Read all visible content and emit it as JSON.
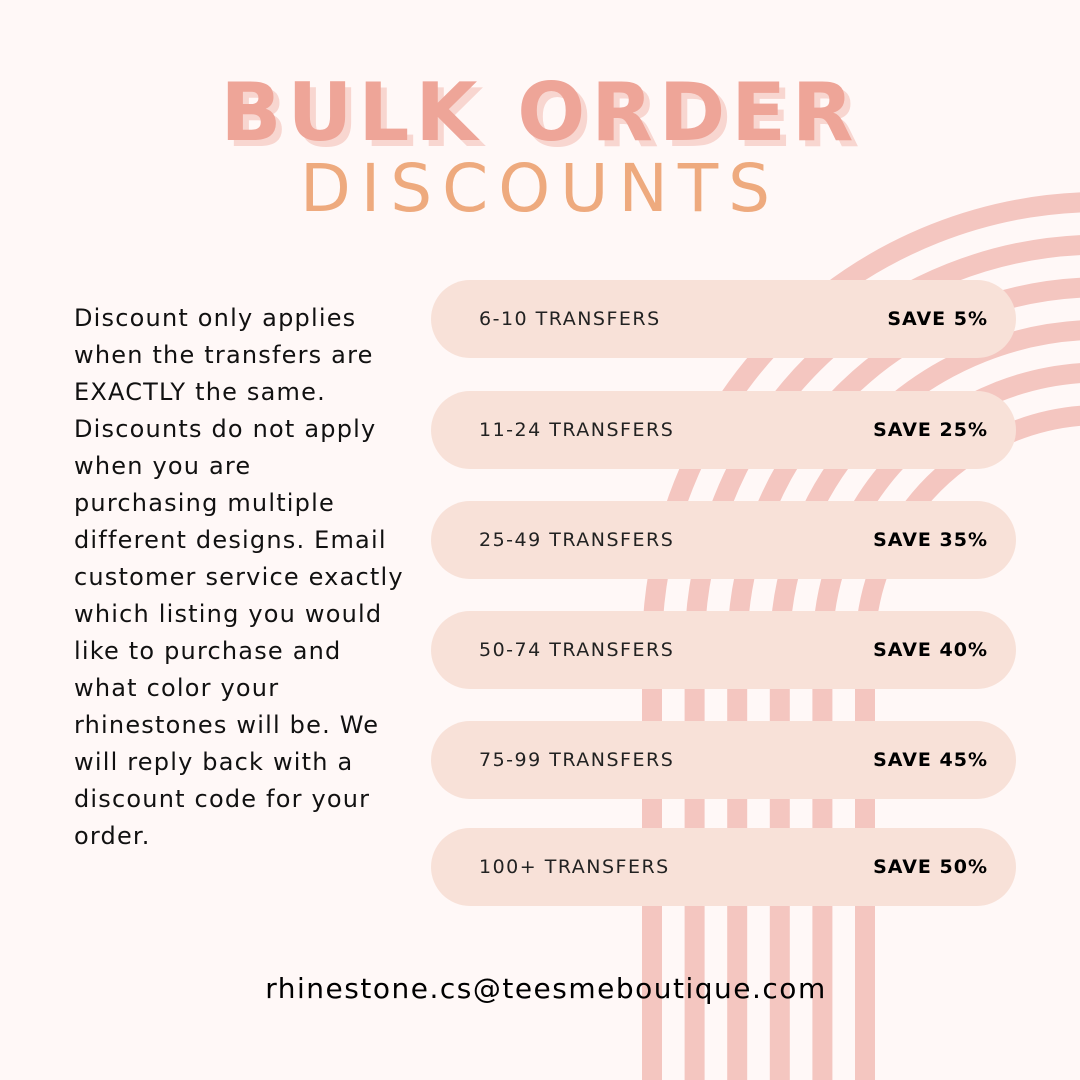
{
  "title": {
    "line1": "BULK ORDER",
    "line2": "DISCOUNTS"
  },
  "description": "Discount only applies when the transfers are EXACTLY the same. Discounts do not apply when you are purchasing multiple different designs. Email customer service exactly which listing you would like to purchase and what color your rhinestones will be. We will reply back with a discount code for your order.",
  "tiers": [
    {
      "quantity": "6-10 TRANSFERS",
      "saving": "SAVE 5%"
    },
    {
      "quantity": "11-24 TRANSFERS",
      "saving": "SAVE 25%"
    },
    {
      "quantity": "25-49 TRANSFERS",
      "saving": "SAVE 35%"
    },
    {
      "quantity": "50-74 TRANSFERS",
      "saving": "SAVE 40%"
    },
    {
      "quantity": "75-99 TRANSFERS",
      "saving": "SAVE 45%"
    },
    {
      "quantity": "100+ TRANSFERS",
      "saving": "SAVE 50%"
    }
  ],
  "email": "rhinestone.cs@teesmeboutique.com",
  "colors": {
    "background": "#fff8f7",
    "title": "#eea598",
    "subtitle": "#eeaa7e",
    "arcs": "#f4c6c0",
    "pill": "#f8e1d8"
  }
}
